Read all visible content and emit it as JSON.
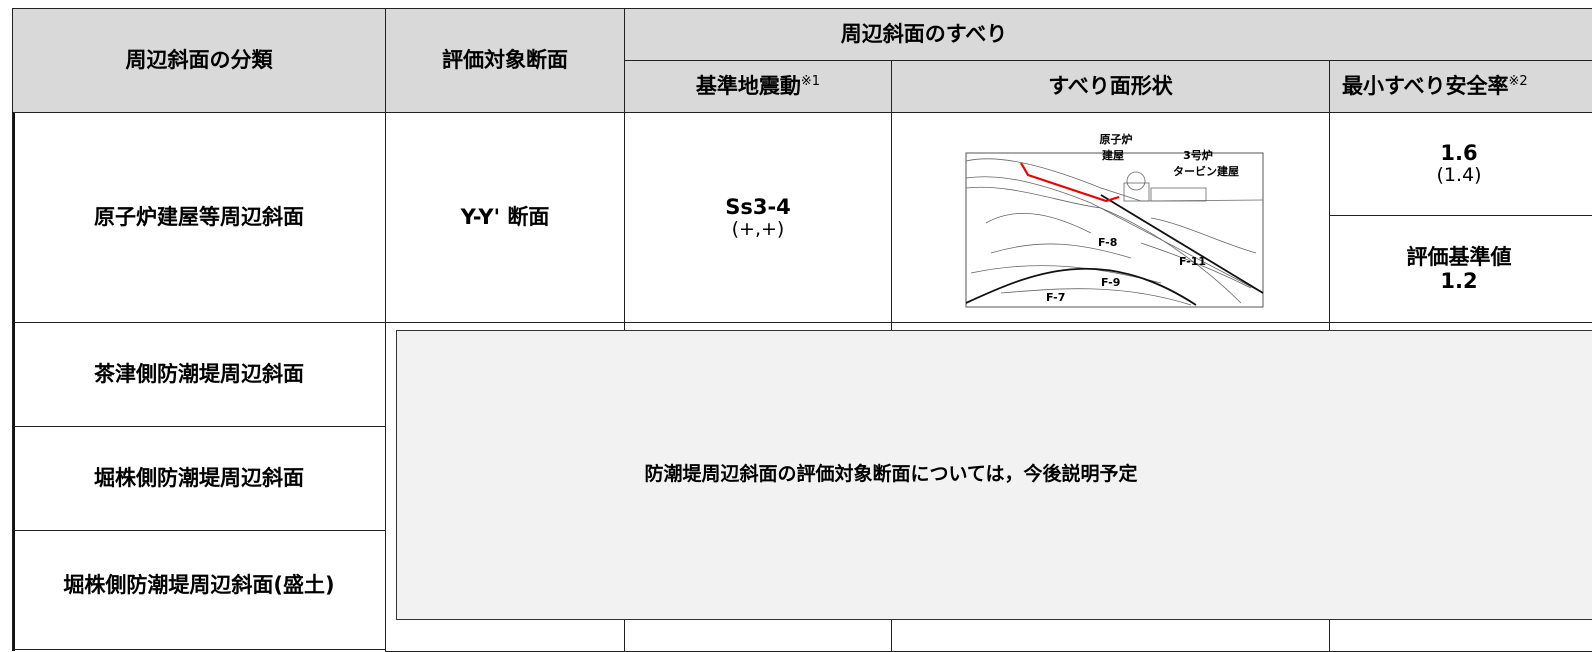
{
  "table": {
    "header": {
      "classification": "周辺斜面の分類",
      "section": "評価対象断面",
      "group": "周辺斜面のすべり",
      "ground_motion": "基準地震動",
      "ground_motion_note": "※1",
      "shape": "すべり面形状",
      "safety_factor": "最小すべり安全率",
      "safety_factor_note": "※2"
    },
    "rows": [
      {
        "classification": "原子炉建屋等周辺斜面",
        "section": "Y-Y' 断面",
        "ground_motion": "Ss3-4",
        "ground_motion_sign": "(+,+)",
        "safety_factor": 1.6,
        "safety_factor_sub": "(1.4)",
        "criterion_label": "評価基準値",
        "criterion": 1.2
      },
      {
        "classification": "茶津側防潮堤周辺斜面"
      },
      {
        "classification": "堀株側防潮堤周辺斜面"
      },
      {
        "classification": "堀株側防潮堤周辺斜面(盛土)"
      }
    ]
  },
  "figure": {
    "reactor": "原子炉",
    "building": "建屋",
    "unit3": "3号炉",
    "turbine": "タービン建屋",
    "faults": [
      "F-8",
      "F-11",
      "F-9",
      "F-7"
    ]
  },
  "overlay": "防潮堤周辺斜面の評価対象断面については，今後説明予定"
}
